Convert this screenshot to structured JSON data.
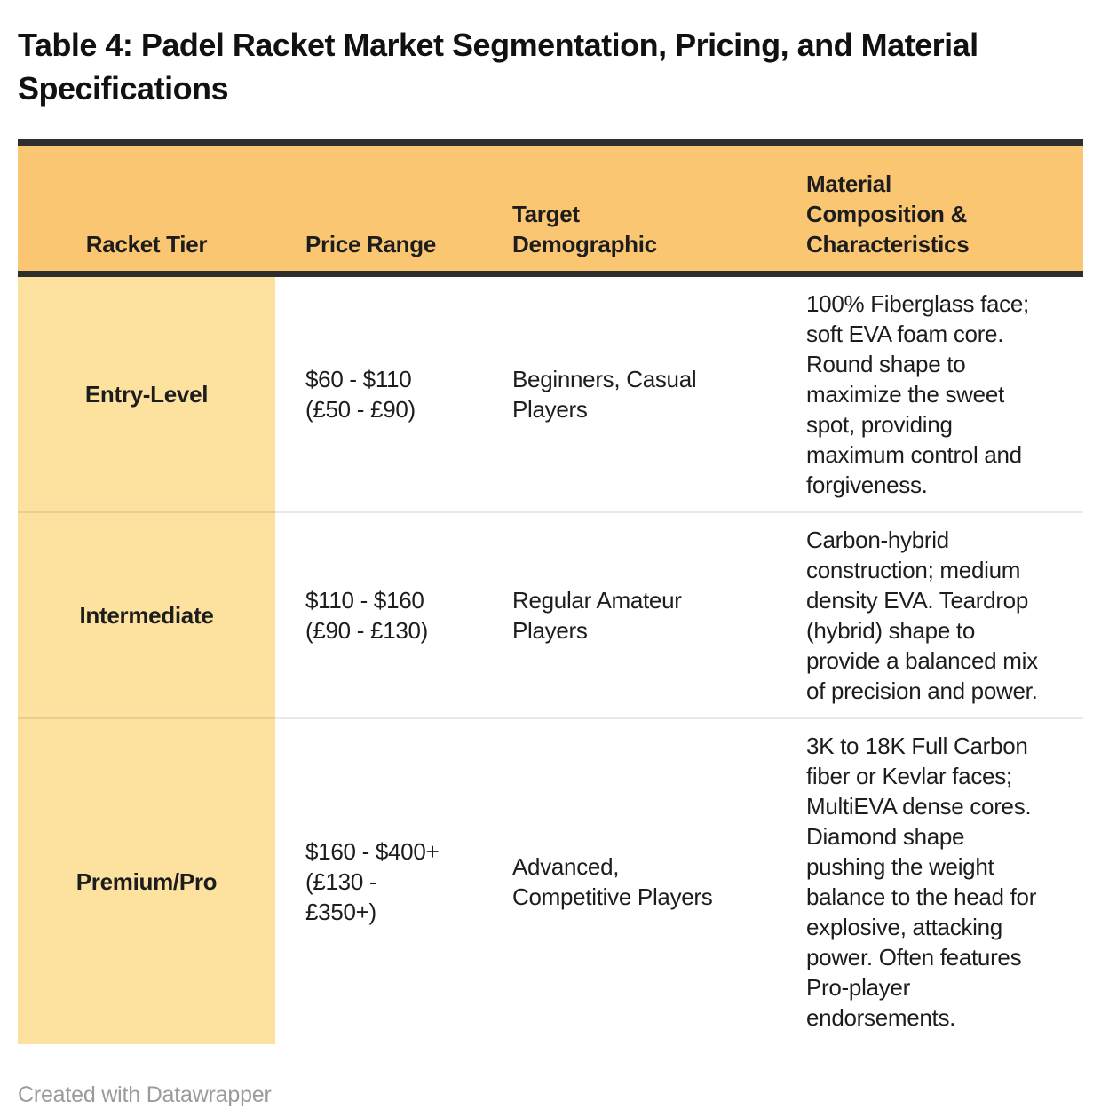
{
  "title": "Table 4: Padel Racket Market Segmentation, Pricing, and Material Specifications",
  "table": {
    "columns": [
      {
        "label": "Racket Tier"
      },
      {
        "label": "Price Range"
      },
      {
        "label": "Target\nDemographic"
      },
      {
        "label": "Material\nComposition &\nCharacteristics"
      }
    ],
    "rows": [
      {
        "tier": "Entry-Level",
        "price": "$60 - $110\n(£50 - £90)",
        "demographic": "Beginners, Casual\nPlayers",
        "material": "100% Fiberglass face;\nsoft EVA foam core.\nRound shape to\nmaximize the sweet\nspot, providing\nmaximum control and\nforgiveness."
      },
      {
        "tier": "Intermediate",
        "price": "$110 - $160\n(£90 - £130)",
        "demographic": "Regular Amateur\nPlayers",
        "material": "Carbon-hybrid\nconstruction; medium\ndensity EVA. Teardrop\n(hybrid) shape to\nprovide a balanced mix\nof precision and power."
      },
      {
        "tier": "Premium/Pro",
        "price": "$160 - $400+\n(£130 -\n£350+)",
        "demographic": "Advanced,\nCompetitive Players",
        "material": "3K to 18K Full Carbon\nfiber or Kevlar faces;\nMultiEVA dense cores.\nDiamond shape\npushing the weight\nbalance to the head for\nexplosive, attacking\npower. Often features\nPro-player\nendorsements."
      }
    ]
  },
  "footer": {
    "credit": "Created with Datawrapper"
  },
  "colors": {
    "header_background": "#FBC672",
    "tier_column_background": "#FDE29F",
    "header_border": "#2E2E2E",
    "row_divider": "#EBEBEB",
    "body_text": "#1D1D1D",
    "title_text": "#111111",
    "footer_text": "#9B9B9B"
  }
}
